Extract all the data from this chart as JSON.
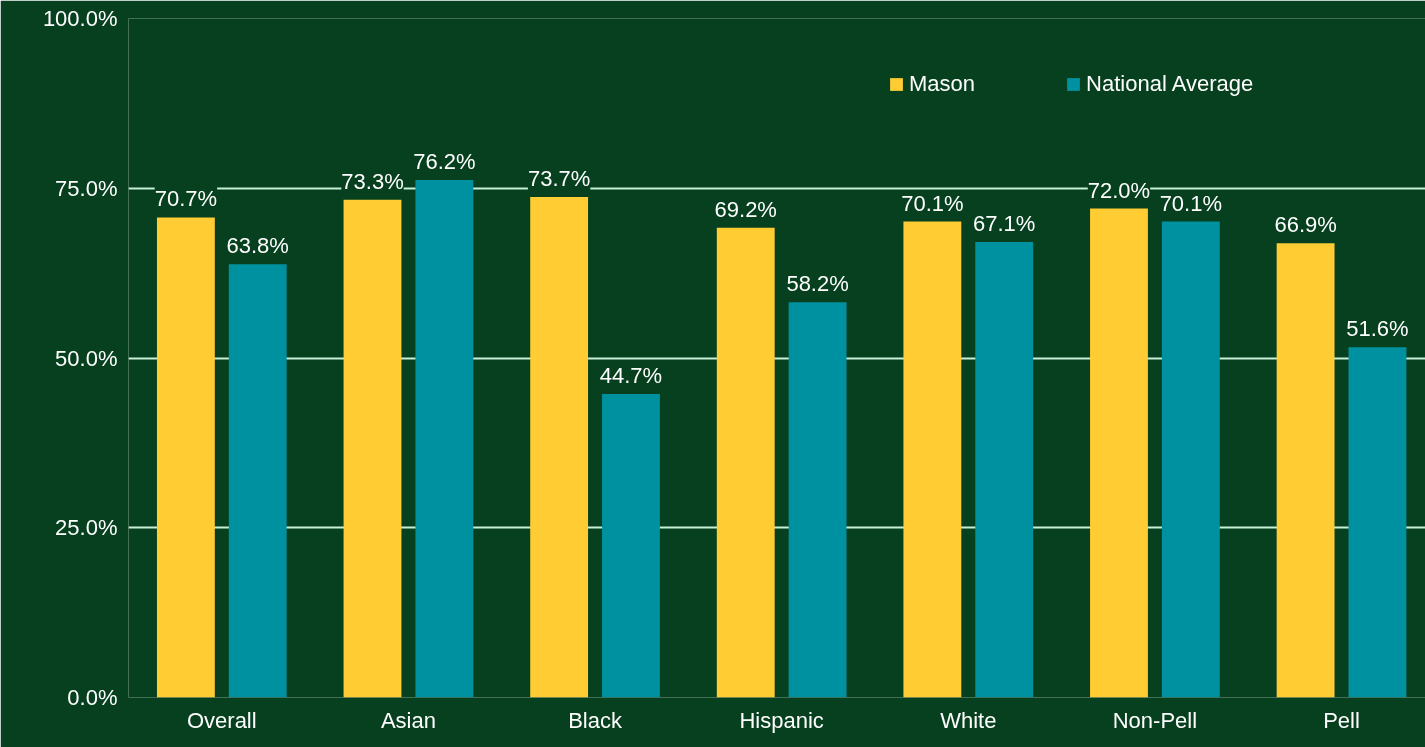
{
  "chart_data": {
    "type": "bar",
    "categories": [
      "Overall",
      "Asian",
      "Black",
      "Hispanic",
      "White",
      "Non-Pell",
      "Pell"
    ],
    "series": [
      {
        "name": "Mason",
        "color": "#ffcc33",
        "values": [
          70.7,
          73.3,
          73.7,
          69.2,
          70.1,
          72.0,
          66.9
        ]
      },
      {
        "name": "National Average",
        "color": "#0091a0",
        "values": [
          63.8,
          76.2,
          44.7,
          58.2,
          67.1,
          70.1,
          51.6
        ]
      }
    ],
    "ylim": [
      0,
      100
    ],
    "yticks": [
      {
        "value": 0,
        "label": "0.0%"
      },
      {
        "value": 25,
        "label": "25.0%"
      },
      {
        "value": 50,
        "label": "50.0%"
      },
      {
        "value": 75,
        "label": "75.0%"
      },
      {
        "value": 100,
        "label": "100.0%"
      }
    ],
    "value_labels": [
      [
        "70.7%",
        "73.3%",
        "73.7%",
        "69.2%",
        "70.1%",
        "72.0%",
        "66.9%"
      ],
      [
        "63.8%",
        "76.2%",
        "44.7%",
        "58.2%",
        "67.1%",
        "70.1%",
        "51.6%"
      ]
    ],
    "grid": "y",
    "legend": "top right"
  }
}
